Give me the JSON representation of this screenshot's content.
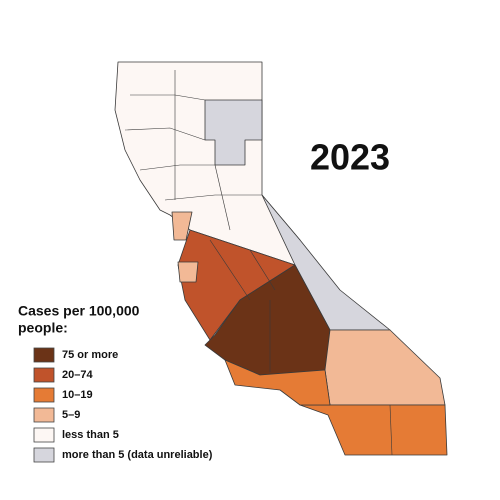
{
  "title": "2023",
  "legend": {
    "title_lines": [
      "Cases per 100,000",
      "people:"
    ],
    "items": [
      {
        "label": "75 or more",
        "color": "#6b3317"
      },
      {
        "label": "20–74",
        "color": "#c0532b"
      },
      {
        "label": "10–19",
        "color": "#e57b35"
      },
      {
        "label": "5–9",
        "color": "#f2b996"
      },
      {
        "label": "less than 5",
        "color": "#fdf7f4"
      },
      {
        "label": "more than 5 (data unreliable)",
        "color": "#d6d6dd"
      }
    ]
  }
}
